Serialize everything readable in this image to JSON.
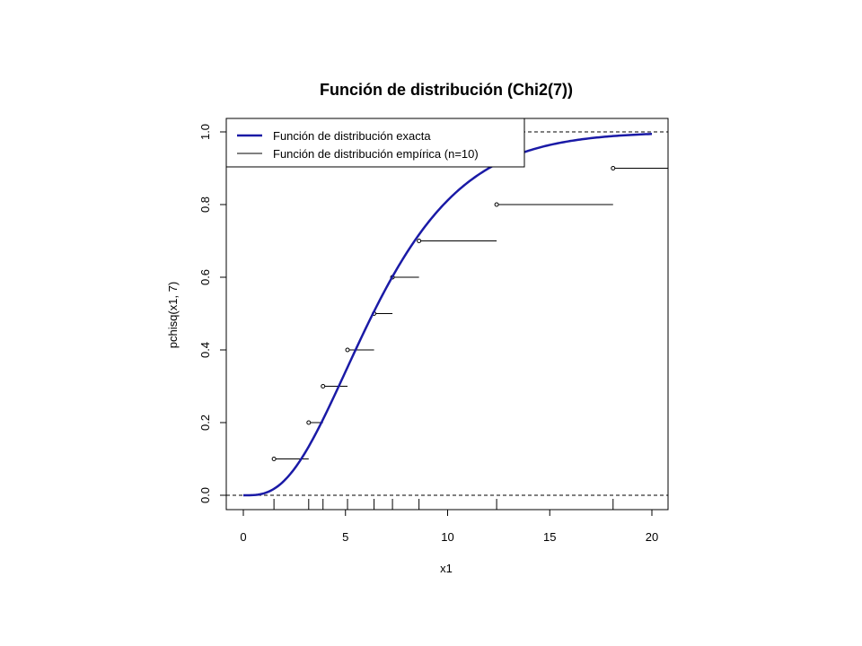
{
  "chart_data": {
    "type": "line",
    "title": "Función de distribución (Chi2(7))",
    "xlabel": "x1",
    "ylabel": "pchisq(x1, 7)",
    "xlim": [
      0,
      20
    ],
    "ylim": [
      0,
      1
    ],
    "x_ticks": [
      "0",
      "5",
      "10",
      "15",
      "20"
    ],
    "y_ticks": [
      "0.0",
      "0.2",
      "0.4",
      "0.6",
      "0.8",
      "1.0"
    ],
    "reference_lines_y": [
      0,
      1
    ],
    "legend_position": "top-left",
    "series": [
      {
        "name": "Función de distribución exacta",
        "kind": "cdf-curve",
        "distribution": "chi-squared",
        "df": 7,
        "x_range": [
          0,
          20
        ],
        "color": "#1a1aa6"
      },
      {
        "name": "Función de distribución empírica (n=10)",
        "kind": "ecdf-steps",
        "color": "#000000",
        "steps": [
          {
            "x_start": 1.5,
            "x_end": 3.2,
            "y": 0.1
          },
          {
            "x_start": 3.2,
            "x_end": 3.9,
            "y": 0.2
          },
          {
            "x_start": 3.9,
            "x_end": 5.1,
            "y": 0.3
          },
          {
            "x_start": 5.1,
            "x_end": 6.4,
            "y": 0.4
          },
          {
            "x_start": 6.4,
            "x_end": 7.3,
            "y": 0.5
          },
          {
            "x_start": 7.3,
            "x_end": 8.6,
            "y": 0.6
          },
          {
            "x_start": 8.6,
            "x_end": 12.4,
            "y": 0.7
          },
          {
            "x_start": 12.4,
            "x_end": 18.1,
            "y": 0.8
          },
          {
            "x_start": 18.1,
            "x_end": 21,
            "y": 0.9
          }
        ],
        "rug": [
          1.5,
          3.2,
          3.9,
          5.1,
          6.4,
          7.3,
          8.6,
          12.4,
          18.1
        ]
      }
    ]
  }
}
